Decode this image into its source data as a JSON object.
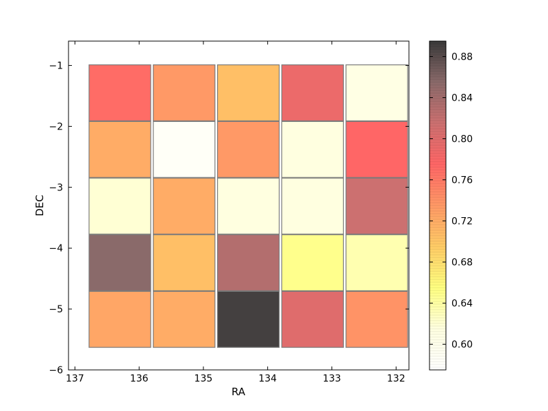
{
  "chart_data": {
    "type": "heatmap",
    "xlabel": "RA",
    "ylabel": "DEC",
    "xlim": [
      137.1,
      131.8
    ],
    "ylim": [
      -6,
      -0.6
    ],
    "x_ticks": [
      137,
      136,
      135,
      134,
      133,
      132
    ],
    "y_ticks": [
      -6,
      -5,
      -4,
      -3,
      -2,
      -1
    ],
    "colorbar": {
      "range": [
        0.575,
        0.895
      ],
      "ticks": [
        0.6,
        0.64,
        0.68,
        0.72,
        0.76,
        0.8,
        0.84,
        0.88
      ],
      "tick_labels": [
        "0.60",
        "0.64",
        "0.68",
        "0.72",
        "0.76",
        "0.80",
        "0.84",
        "0.88"
      ],
      "colormap": [
        "#ffffff",
        "#ffffe0",
        "#ffff80",
        "#ffcc66",
        "#ff9966",
        "#ff6666",
        "#cc7070",
        "#8a6a6a",
        "#3a3a3a"
      ]
    },
    "cells": [
      {
        "ra": 136.3,
        "dec": -1.45,
        "value": 0.77
      },
      {
        "ra": 135.3,
        "dec": -1.45,
        "value": 0.735
      },
      {
        "ra": 134.3,
        "dec": -1.45,
        "value": 0.705
      },
      {
        "ra": 133.3,
        "dec": -1.45,
        "value": 0.79
      },
      {
        "ra": 132.3,
        "dec": -1.45,
        "value": 0.61
      },
      {
        "ra": 136.3,
        "dec": -2.38,
        "value": 0.72
      },
      {
        "ra": 135.3,
        "dec": -2.38,
        "value": 0.585
      },
      {
        "ra": 134.3,
        "dec": -2.38,
        "value": 0.735
      },
      {
        "ra": 133.3,
        "dec": -2.38,
        "value": 0.615
      },
      {
        "ra": 132.3,
        "dec": -2.38,
        "value": 0.775
      },
      {
        "ra": 136.3,
        "dec": -3.31,
        "value": 0.62
      },
      {
        "ra": 135.3,
        "dec": -3.31,
        "value": 0.72
      },
      {
        "ra": 134.3,
        "dec": -3.31,
        "value": 0.615
      },
      {
        "ra": 133.3,
        "dec": -3.31,
        "value": 0.615
      },
      {
        "ra": 132.3,
        "dec": -3.31,
        "value": 0.815
      },
      {
        "ra": 136.3,
        "dec": -4.24,
        "value": 0.855
      },
      {
        "ra": 135.3,
        "dec": -4.24,
        "value": 0.705
      },
      {
        "ra": 134.3,
        "dec": -4.24,
        "value": 0.83
      },
      {
        "ra": 133.3,
        "dec": -4.24,
        "value": 0.65
      },
      {
        "ra": 132.3,
        "dec": -4.24,
        "value": 0.635
      },
      {
        "ra": 136.3,
        "dec": -5.17,
        "value": 0.725
      },
      {
        "ra": 135.3,
        "dec": -5.17,
        "value": 0.72
      },
      {
        "ra": 134.3,
        "dec": -5.17,
        "value": 0.89
      },
      {
        "ra": 133.3,
        "dec": -5.17,
        "value": 0.8
      },
      {
        "ra": 132.3,
        "dec": -5.17,
        "value": 0.74
      }
    ],
    "cell_width_deg": 0.96,
    "cell_height_deg": 0.92,
    "grid": false
  }
}
